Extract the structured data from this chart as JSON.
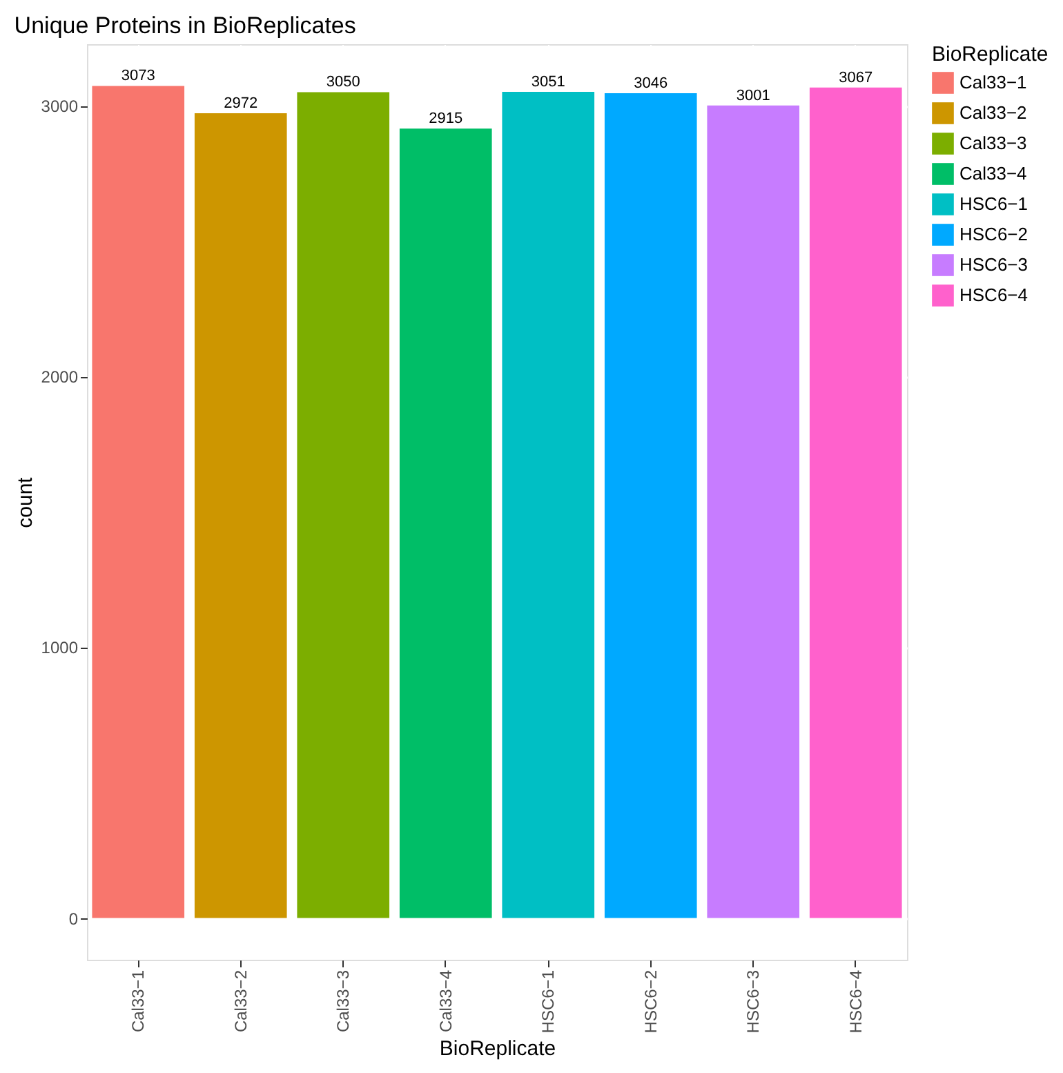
{
  "chart_data": {
    "type": "bar",
    "title": "Unique Proteins in BioReplicates",
    "xlabel": "BioReplicate",
    "ylabel": "count",
    "legend_title": "BioReplicate",
    "categories": [
      "Cal33−1",
      "Cal33−2",
      "Cal33−3",
      "Cal33−4",
      "HSC6−1",
      "HSC6−2",
      "HSC6−3",
      "HSC6−4"
    ],
    "stacked": true,
    "series": [
      {
        "name": "Cal33−1",
        "color": "#f8766d",
        "values": [
          3073,
          null,
          null,
          null,
          null,
          null,
          null,
          null
        ]
      },
      {
        "name": "Cal33−2",
        "color": "#cd9600",
        "values": [
          null,
          2972,
          null,
          null,
          null,
          null,
          null,
          null
        ]
      },
      {
        "name": "Cal33−3",
        "color": "#7cae00",
        "values": [
          null,
          null,
          3050,
          null,
          null,
          null,
          null,
          null
        ]
      },
      {
        "name": "Cal33−4",
        "color": "#00be67",
        "values": [
          null,
          null,
          null,
          2915,
          null,
          null,
          null,
          null
        ]
      },
      {
        "name": "HSC6−1",
        "color": "#00bfc4",
        "values": [
          null,
          null,
          null,
          null,
          3051,
          null,
          null,
          null
        ]
      },
      {
        "name": "HSC6−2",
        "color": "#00a9ff",
        "values": [
          null,
          null,
          null,
          null,
          null,
          3046,
          null,
          null
        ]
      },
      {
        "name": "HSC6−3",
        "color": "#c77cff",
        "values": [
          null,
          null,
          null,
          null,
          null,
          null,
          3001,
          null
        ]
      },
      {
        "name": "HSC6−4",
        "color": "#ff61cc",
        "values": [
          null,
          null,
          null,
          null,
          null,
          null,
          null,
          3067
        ]
      }
    ],
    "ylim": [
      -154,
      3227
    ],
    "yticks": [
      0,
      1000,
      2000,
      3000
    ],
    "grid": true,
    "legend": "right",
    "data_labels": true
  }
}
